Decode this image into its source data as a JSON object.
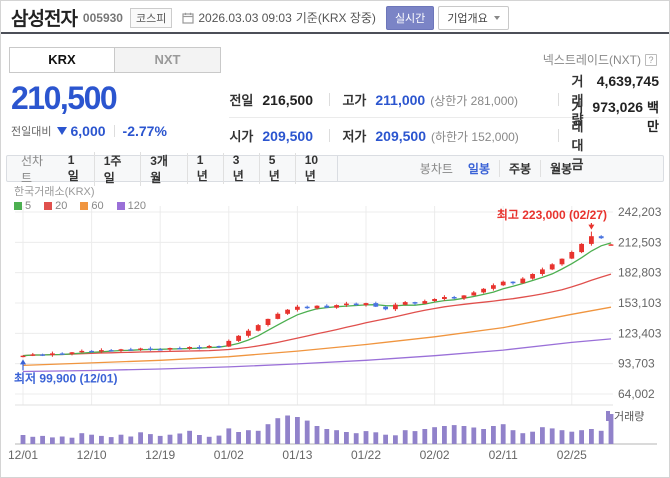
{
  "header": {
    "title": "삼성전자",
    "code": "005930",
    "market_badge": "코스피",
    "datetime": "2026.03.03 09:03",
    "basis": "기준(KRX 장중)",
    "realtime_label": "실시간",
    "overview_label": "기업개요"
  },
  "tabs": {
    "krx": "KRX",
    "nxt": "NXT"
  },
  "nxt_link": {
    "label": "넥스트레이드(NXT)",
    "help": "?"
  },
  "price": {
    "current": "210,500",
    "change_label": "전일대비",
    "change_value": "6,000",
    "change_percent": "-2.77%"
  },
  "summary": {
    "rows": [
      {
        "c1l": "전일",
        "c1v": "216,500",
        "c2l": "고가",
        "c2v": "211,000",
        "c2s": "(상한가 281,000)",
        "c3l": "거래량",
        "c3v": "4,639,745",
        "c3u": ""
      },
      {
        "c1l": "시가",
        "c1v": "209,500",
        "c2l": "저가",
        "c2v": "209,500",
        "c2s": "(하한가 152,000)",
        "c3l": "거래대금",
        "c3v": "973,026",
        "c3u": "백만"
      }
    ]
  },
  "toolbar": {
    "line_label": "선차트",
    "line_items": [
      "1일",
      "1주일",
      "3개월",
      "1년",
      "3년",
      "5년",
      "10년"
    ],
    "candle_label": "봉차트",
    "candle_items": [
      "일봉",
      "주봉",
      "월봉"
    ],
    "active_item": "일봉"
  },
  "chart_data": {
    "type": "candlestick+volume",
    "exchange_label": "한국거래소(KRX)",
    "ma_legend": [
      "5",
      "20",
      "60",
      "120"
    ],
    "volume_label": "거래량",
    "colors": {
      "up": "#e8332e",
      "down": "#4a74e0",
      "volume": "#9182ca",
      "ma5": "#4caf50",
      "ma20": "#e0504d",
      "ma60": "#f0953f",
      "ma120": "#9a70d8",
      "annotation_low": "#3a62d6",
      "accent_blue": "#2b55cf"
    },
    "y_axis": {
      "ticks": [
        {
          "label": "242,203",
          "value": 242203
        },
        {
          "label": "212,503",
          "value": 212503
        },
        {
          "label": "182,803",
          "value": 182803
        },
        {
          "label": "153,103",
          "value": 153103
        },
        {
          "label": "123,403",
          "value": 123403
        },
        {
          "label": "93,703",
          "value": 93703
        },
        {
          "label": "64,002",
          "value": 64002
        }
      ]
    },
    "x_axis": {
      "ticks": [
        {
          "label": "12/01",
          "index": 0
        },
        {
          "label": "12/10",
          "index": 7
        },
        {
          "label": "12/19",
          "index": 14
        },
        {
          "label": "01/02",
          "index": 21
        },
        {
          "label": "01/13",
          "index": 28
        },
        {
          "label": "01/22",
          "index": 35
        },
        {
          "label": "02/02",
          "index": 42
        },
        {
          "label": "02/11",
          "index": 49
        },
        {
          "label": "02/25",
          "index": 56
        }
      ]
    },
    "dates": [
      "12/01",
      "12/02",
      "12/03",
      "12/04",
      "12/05",
      "12/08",
      "12/09",
      "12/10",
      "12/11",
      "12/12",
      "12/15",
      "12/16",
      "12/17",
      "12/18",
      "12/19",
      "12/22",
      "12/23",
      "12/24",
      "12/26",
      "12/29",
      "12/30",
      "01/02",
      "01/05",
      "01/06",
      "01/07",
      "01/08",
      "01/09",
      "01/12",
      "01/13",
      "01/14",
      "01/15",
      "01/16",
      "01/19",
      "01/20",
      "01/21",
      "01/22",
      "01/23",
      "01/26",
      "01/27",
      "01/28",
      "01/29",
      "01/30",
      "02/02",
      "02/03",
      "02/04",
      "02/05",
      "02/06",
      "02/09",
      "02/10",
      "02/11",
      "02/12",
      "02/13",
      "02/19",
      "02/20",
      "02/23",
      "02/24",
      "02/25",
      "02/26",
      "02/27",
      "03/02",
      "03/03"
    ],
    "closes": [
      101500,
      102800,
      102200,
      103800,
      103200,
      104800,
      106200,
      105600,
      107000,
      106400,
      107800,
      107200,
      108600,
      108000,
      107400,
      109000,
      108400,
      110000,
      109400,
      111000,
      110400,
      116000,
      121000,
      126000,
      131500,
      137500,
      142500,
      146500,
      149500,
      148000,
      150500,
      148500,
      151000,
      152500,
      151000,
      153000,
      149500,
      147000,
      151500,
      154000,
      152500,
      155000,
      157000,
      159000,
      157500,
      160500,
      163500,
      167000,
      170500,
      174000,
      172500,
      177000,
      181500,
      186000,
      191000,
      196500,
      203000,
      211000,
      218500,
      216500,
      210500
    ],
    "volumes": [
      0.3,
      0.24,
      0.27,
      0.22,
      0.25,
      0.21,
      0.36,
      0.31,
      0.27,
      0.23,
      0.31,
      0.25,
      0.39,
      0.33,
      0.27,
      0.31,
      0.35,
      0.44,
      0.3,
      0.24,
      0.28,
      0.52,
      0.4,
      0.46,
      0.44,
      0.66,
      0.86,
      0.95,
      0.9,
      0.78,
      0.6,
      0.5,
      0.46,
      0.4,
      0.36,
      0.43,
      0.39,
      0.31,
      0.29,
      0.46,
      0.43,
      0.5,
      0.56,
      0.6,
      0.63,
      0.6,
      0.55,
      0.5,
      0.6,
      0.66,
      0.46,
      0.36,
      0.41,
      0.56,
      0.52,
      0.46,
      0.41,
      0.46,
      0.5,
      0.44,
      1.0
    ],
    "first_open": 100800,
    "last_candle": {
      "open": 209500,
      "high": 211000,
      "low": 209500,
      "close": 210500
    },
    "ma_anchor_indices": [
      0,
      7,
      14,
      21,
      28,
      35,
      42,
      49,
      56,
      60
    ],
    "ma60_points": [
      92000,
      94500,
      97000,
      100500,
      106000,
      112500,
      120000,
      129000,
      142000,
      149000
    ],
    "ma120_points": [
      86000,
      87000,
      88500,
      90500,
      93500,
      97000,
      101500,
      107000,
      114500,
      118000
    ],
    "annotations": {
      "high": {
        "label": "최고",
        "value": "223,000",
        "date_text": "(02/27)",
        "index": 58,
        "price": 223000
      },
      "low": {
        "label": "최저",
        "value": "99,900",
        "date_text": "(12/01)",
        "index": 0,
        "price": 99900
      }
    }
  }
}
